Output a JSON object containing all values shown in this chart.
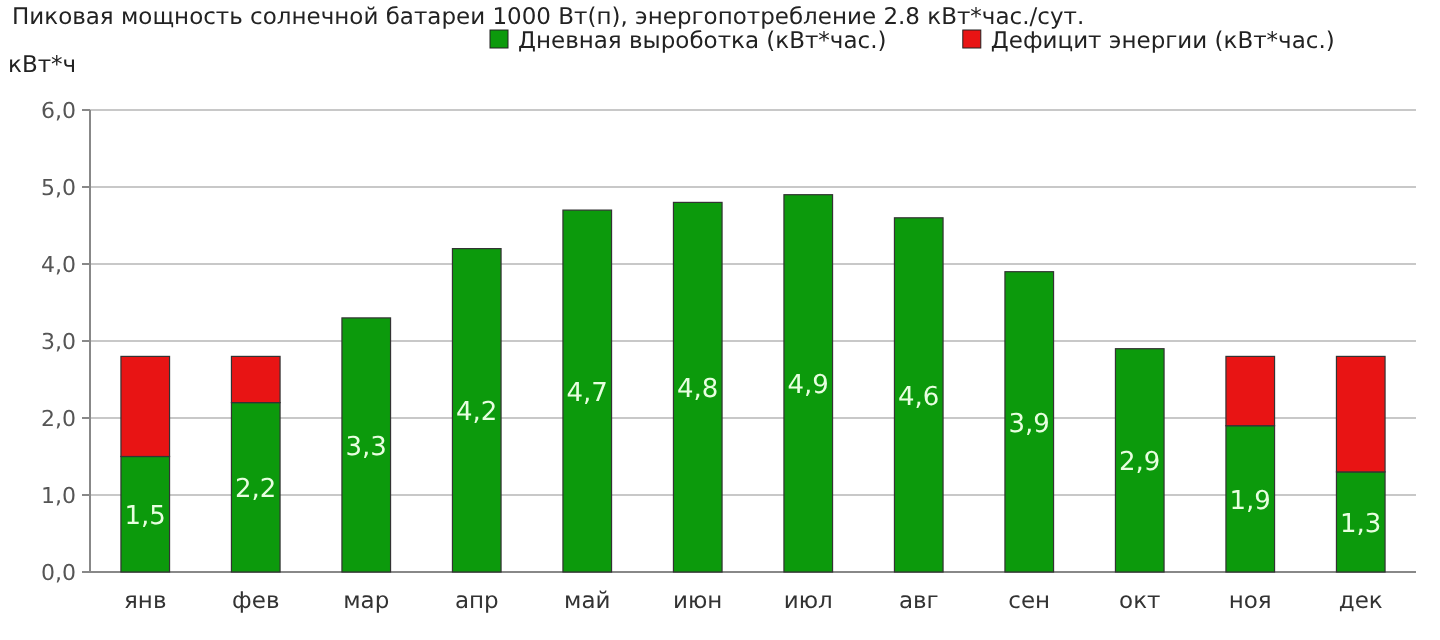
{
  "chart_data": {
    "type": "bar",
    "stacked": true,
    "title": "Пиковая мощность солнечной батареи 1000 Вт(п), энергопотребление 2.8 кВт*час./сут.",
    "ylabel": "кВт*ч",
    "categories": [
      "янв",
      "фев",
      "мар",
      "апр",
      "май",
      "июн",
      "июл",
      "авг",
      "сен",
      "окт",
      "ноя",
      "дек"
    ],
    "series": [
      {
        "name": "Дневная выроботка (кВт*час.)",
        "color": "#0c9a0c",
        "values": [
          1.5,
          2.2,
          3.3,
          4.2,
          4.7,
          4.8,
          4.9,
          4.6,
          3.9,
          2.9,
          1.9,
          1.3
        ],
        "value_labels": [
          "1,5",
          "2,2",
          "3,3",
          "4,2",
          "4,7",
          "4,8",
          "4,9",
          "4,6",
          "3,9",
          "2,9",
          "1,9",
          "1,3"
        ]
      },
      {
        "name": "Дефицит энергии (кВт*час.)",
        "color": "#e81414",
        "values": [
          1.3,
          0.6,
          null,
          null,
          null,
          null,
          null,
          null,
          null,
          null,
          0.9,
          1.5
        ]
      }
    ],
    "ylim": [
      0,
      6
    ],
    "yticks": [
      {
        "value": 0,
        "label": "0,0"
      },
      {
        "value": 1,
        "label": "1,0"
      },
      {
        "value": 2,
        "label": "2,0"
      },
      {
        "value": 3,
        "label": "3,0"
      },
      {
        "value": 4,
        "label": "4,0"
      },
      {
        "value": 5,
        "label": "5,0"
      },
      {
        "value": 6,
        "label": "6,0"
      }
    ],
    "grid": "y",
    "legend": "top"
  }
}
